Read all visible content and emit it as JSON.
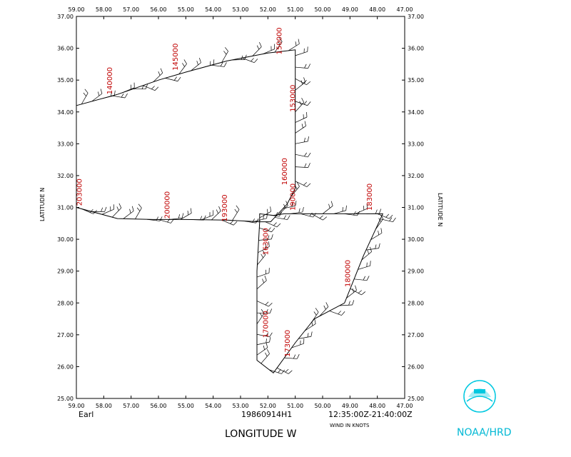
{
  "chart_data": {
    "type": "line",
    "title": "",
    "storm_name": "Earl",
    "flight_id": "19860914H1",
    "time_range": "12:35:00Z-21:40:00Z",
    "wind_units_label": "WIND IN KNOTS",
    "xlabel": "LONGITUDE   W",
    "ylabel_left": "LATITUDE   N",
    "ylabel_right": "LATITUDE   N",
    "xlim": [
      59.0,
      47.0
    ],
    "ylim": [
      25.0,
      37.0
    ],
    "x_ticks": [
      "59.00",
      "58.00",
      "57.00",
      "56.00",
      "55.00",
      "54.00",
      "53.00",
      "52.00",
      "51.00",
      "50.00",
      "49.00",
      "48.00",
      "47.00"
    ],
    "y_ticks": [
      "25.00",
      "26.00",
      "27.00",
      "28.00",
      "29.00",
      "30.00",
      "31.00",
      "32.00",
      "33.00",
      "34.00",
      "35.00",
      "36.00",
      "37.00"
    ],
    "track": [
      [
        59.0,
        34.2
      ],
      [
        57.5,
        34.55
      ],
      [
        56.0,
        35.0
      ],
      [
        55.0,
        35.25
      ],
      [
        53.5,
        35.6
      ],
      [
        52.0,
        35.85
      ],
      [
        51.0,
        35.95
      ],
      [
        51.0,
        34.5
      ],
      [
        51.0,
        33.5
      ],
      [
        51.0,
        32.5
      ],
      [
        51.0,
        31.6
      ],
      [
        51.3,
        31.1
      ],
      [
        51.9,
        30.55
      ],
      [
        52.3,
        30.55
      ],
      [
        52.3,
        30.8
      ],
      [
        51.8,
        30.75
      ],
      [
        51.4,
        30.8
      ],
      [
        50.6,
        30.8
      ],
      [
        49.0,
        30.8
      ],
      [
        47.8,
        30.8
      ],
      [
        48.5,
        29.5
      ],
      [
        49.2,
        28.0
      ],
      [
        50.3,
        27.5
      ],
      [
        51.0,
        26.75
      ],
      [
        51.8,
        25.8
      ],
      [
        52.4,
        26.2
      ],
      [
        52.4,
        27.5
      ],
      [
        52.4,
        29.0
      ],
      [
        52.3,
        30.55
      ],
      [
        53.5,
        30.6
      ],
      [
        55.0,
        30.62
      ],
      [
        56.2,
        30.62
      ],
      [
        57.5,
        30.65
      ],
      [
        59.0,
        31.0
      ]
    ],
    "time_labels": [
      {
        "text": "140000",
        "lon": 57.7,
        "lat": 34.55
      },
      {
        "text": "145000",
        "lon": 55.3,
        "lat": 35.3
      },
      {
        "text": "150000",
        "lon": 51.5,
        "lat": 35.8
      },
      {
        "text": "153000",
        "lon": 51.0,
        "lat": 34.0
      },
      {
        "text": "160000",
        "lon": 51.3,
        "lat": 31.7
      },
      {
        "text": "183000",
        "lon": 48.2,
        "lat": 30.9
      },
      {
        "text": "190000",
        "lon": 51.0,
        "lat": 30.9
      },
      {
        "text": "163000",
        "lon": 52.0,
        "lat": 29.5
      },
      {
        "text": "193000",
        "lon": 53.5,
        "lat": 30.55
      },
      {
        "text": "200000",
        "lon": 55.6,
        "lat": 30.65
      },
      {
        "text": "203000",
        "lon": 58.8,
        "lat": 31.05
      },
      {
        "text": "180000",
        "lon": 49.0,
        "lat": 28.5
      },
      {
        "text": "170000",
        "lon": 52.0,
        "lat": 26.9
      },
      {
        "text": "173000",
        "lon": 51.2,
        "lat": 26.3
      }
    ]
  },
  "logo": {
    "text": "NOAA/HRD",
    "color": "#00c8e0"
  }
}
